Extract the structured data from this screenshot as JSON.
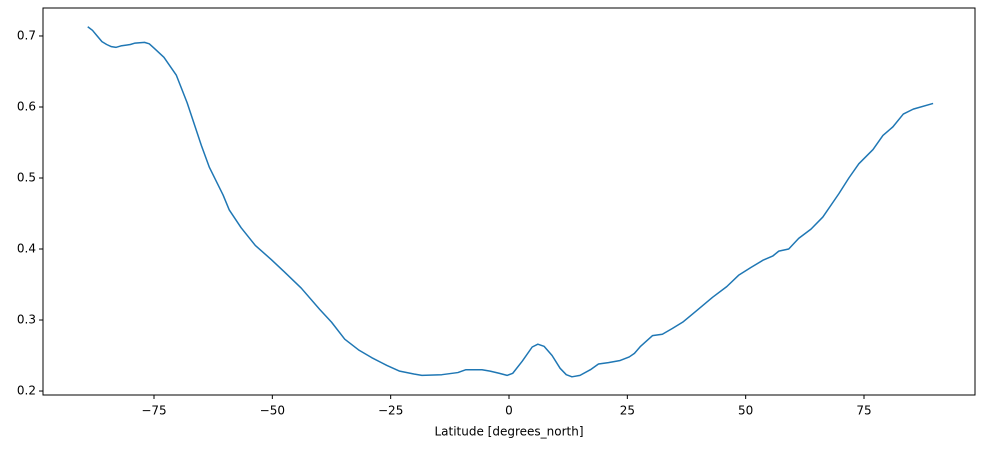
{
  "chart_data": {
    "type": "line",
    "xlabel": "Latitude [degrees_north]",
    "x": [
      -89,
      -88,
      -87,
      -86,
      -85,
      -84,
      -83,
      -82,
      -80,
      -79,
      -77,
      -76,
      -75,
      -72.9,
      -70.3,
      -68,
      -65,
      -63.3,
      -60.4,
      -59.1,
      -56.6,
      -53.6,
      -50.2,
      -47.5,
      -43.9,
      -40,
      -37.5,
      -34.7,
      -31.8,
      -29,
      -25.8,
      -23.1,
      -20.1,
      -18.4,
      -14.2,
      -10.8,
      -9.1,
      -5.7,
      -4,
      -2.1,
      -0.4,
      0.8,
      2.8,
      4.9,
      6.1,
      7.4,
      9.1,
      10.8,
      12.1,
      13.3,
      15,
      17.2,
      18.9,
      21,
      23.5,
      25.4,
      26.5,
      27.8,
      30.3,
      32.4,
      34.5,
      36.7,
      39.6,
      43,
      46,
      48.5,
      51.1,
      53.6,
      55.7,
      57,
      59.1,
      61.2,
      63.8,
      66.3,
      69.7,
      71.8,
      73.9,
      76.9,
      79,
      81.1,
      83.3,
      85.4,
      89.6
    ],
    "series": [
      {
        "color": "#1f77b4",
        "values": [
          0.713,
          0.708,
          0.7,
          0.692,
          0.688,
          0.685,
          0.684,
          0.686,
          0.688,
          0.69,
          0.691,
          0.689,
          0.683,
          0.67,
          0.645,
          0.606,
          0.546,
          0.515,
          0.476,
          0.455,
          0.43,
          0.405,
          0.385,
          0.368,
          0.345,
          0.315,
          0.297,
          0.273,
          0.258,
          0.247,
          0.236,
          0.228,
          0.224,
          0.222,
          0.223,
          0.226,
          0.23,
          0.23,
          0.228,
          0.225,
          0.222,
          0.225,
          0.242,
          0.262,
          0.266,
          0.263,
          0.25,
          0.232,
          0.223,
          0.22,
          0.222,
          0.23,
          0.238,
          0.24,
          0.243,
          0.248,
          0.253,
          0.263,
          0.278,
          0.28,
          0.288,
          0.297,
          0.313,
          0.332,
          0.347,
          0.363,
          0.374,
          0.384,
          0.39,
          0.397,
          0.4,
          0.415,
          0.428,
          0.445,
          0.478,
          0.5,
          0.52,
          0.54,
          0.56,
          0.572,
          0.59,
          0.597,
          0.605
        ]
      }
    ],
    "xlim": [
      -98.45,
      98.45
    ],
    "ylim": [
      0.1944,
      0.7394
    ],
    "xticks": [
      {
        "value": -75,
        "label": "−75"
      },
      {
        "value": -50,
        "label": "−50"
      },
      {
        "value": -25,
        "label": "−25"
      },
      0,
      25,
      50,
      75
    ],
    "yticks": [
      0.2,
      0.3,
      0.4,
      0.5,
      0.6,
      0.7
    ],
    "grid": false
  }
}
